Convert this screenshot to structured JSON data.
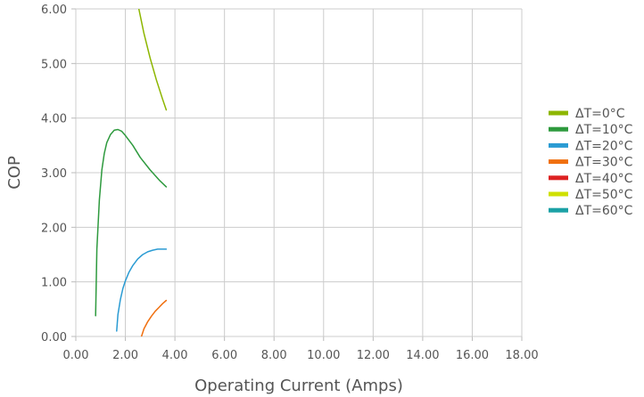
{
  "chart_data": {
    "type": "line",
    "xlabel": "Operating Current (Amps)",
    "ylabel": "COP",
    "xlim": [
      0,
      18
    ],
    "ylim": [
      0,
      6
    ],
    "xticks": [
      0,
      2,
      4,
      6,
      8,
      10,
      12,
      14,
      16,
      18
    ],
    "yticks": [
      0,
      1,
      2,
      3,
      4,
      5,
      6
    ],
    "xtick_labels": [
      "0.00",
      "2.00",
      "4.00",
      "6.00",
      "8.00",
      "10.00",
      "12.00",
      "14.00",
      "16.00",
      "18.00"
    ],
    "ytick_labels": [
      "0.00",
      "1.00",
      "2.00",
      "3.00",
      "4.00",
      "5.00",
      "6.00"
    ],
    "grid": true,
    "legend_position": "right",
    "series": [
      {
        "name": "ΔT=0°C",
        "color": "#8db600",
        "x": [
          2.5,
          2.75,
          3.0,
          3.25,
          3.5,
          3.65
        ],
        "y": [
          6.1,
          5.55,
          5.1,
          4.7,
          4.35,
          4.15
        ]
      },
      {
        "name": "ΔT=10°C",
        "color": "#2e9a3e",
        "x": [
          0.8,
          0.85,
          0.95,
          1.05,
          1.15,
          1.25,
          1.4,
          1.55,
          1.7,
          1.85,
          2.0,
          2.3,
          2.6,
          3.0,
          3.4,
          3.65
        ],
        "y": [
          0.38,
          1.6,
          2.5,
          3.05,
          3.35,
          3.55,
          3.7,
          3.78,
          3.79,
          3.76,
          3.68,
          3.5,
          3.28,
          3.05,
          2.85,
          2.74
        ]
      },
      {
        "name": "ΔT=20°C",
        "color": "#2a9bd3",
        "x": [
          1.65,
          1.7,
          1.8,
          1.9,
          2.0,
          2.15,
          2.3,
          2.5,
          2.7,
          2.9,
          3.1,
          3.3,
          3.5,
          3.65
        ],
        "y": [
          0.1,
          0.4,
          0.68,
          0.88,
          1.02,
          1.18,
          1.3,
          1.42,
          1.5,
          1.55,
          1.58,
          1.6,
          1.6,
          1.6
        ]
      },
      {
        "name": "ΔT=30°C",
        "color": "#f07010",
        "x": [
          2.65,
          2.75,
          2.9,
          3.05,
          3.2,
          3.35,
          3.5,
          3.65
        ],
        "y": [
          0.0,
          0.14,
          0.27,
          0.37,
          0.46,
          0.53,
          0.6,
          0.66
        ]
      },
      {
        "name": "ΔT=40°C",
        "color": "#dd2222",
        "x": [],
        "y": []
      },
      {
        "name": "ΔT=50°C",
        "color": "#cfe000",
        "x": [],
        "y": []
      },
      {
        "name": "ΔT=60°C",
        "color": "#1ba1a6",
        "x": [],
        "y": []
      }
    ]
  }
}
